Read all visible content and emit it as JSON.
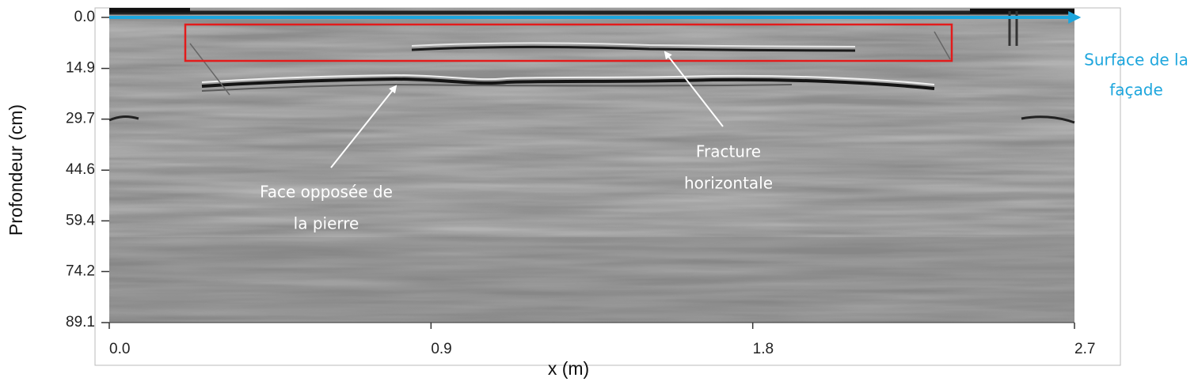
{
  "chart_data": {
    "type": "radargram",
    "x_label": "x (m)",
    "y_label": "Profondeur (cm)",
    "xlim": [
      0,
      2.7
    ],
    "xticks": [
      {
        "value": 0,
        "label": "0.0"
      },
      0.9,
      1.8,
      2.7
    ],
    "ylim": [
      89.1,
      0
    ],
    "yticks": [
      {
        "value": 0,
        "label": "0.0"
      },
      14.9,
      29.7,
      44.6,
      59.4,
      74.2,
      89.1
    ],
    "surface_label": [
      "Surface de la",
      "façade"
    ],
    "annotations": [
      {
        "lines": [
          "Face opposée de",
          "la pierre"
        ]
      },
      {
        "lines": [
          "Fracture",
          "horizontale"
        ]
      }
    ]
  }
}
